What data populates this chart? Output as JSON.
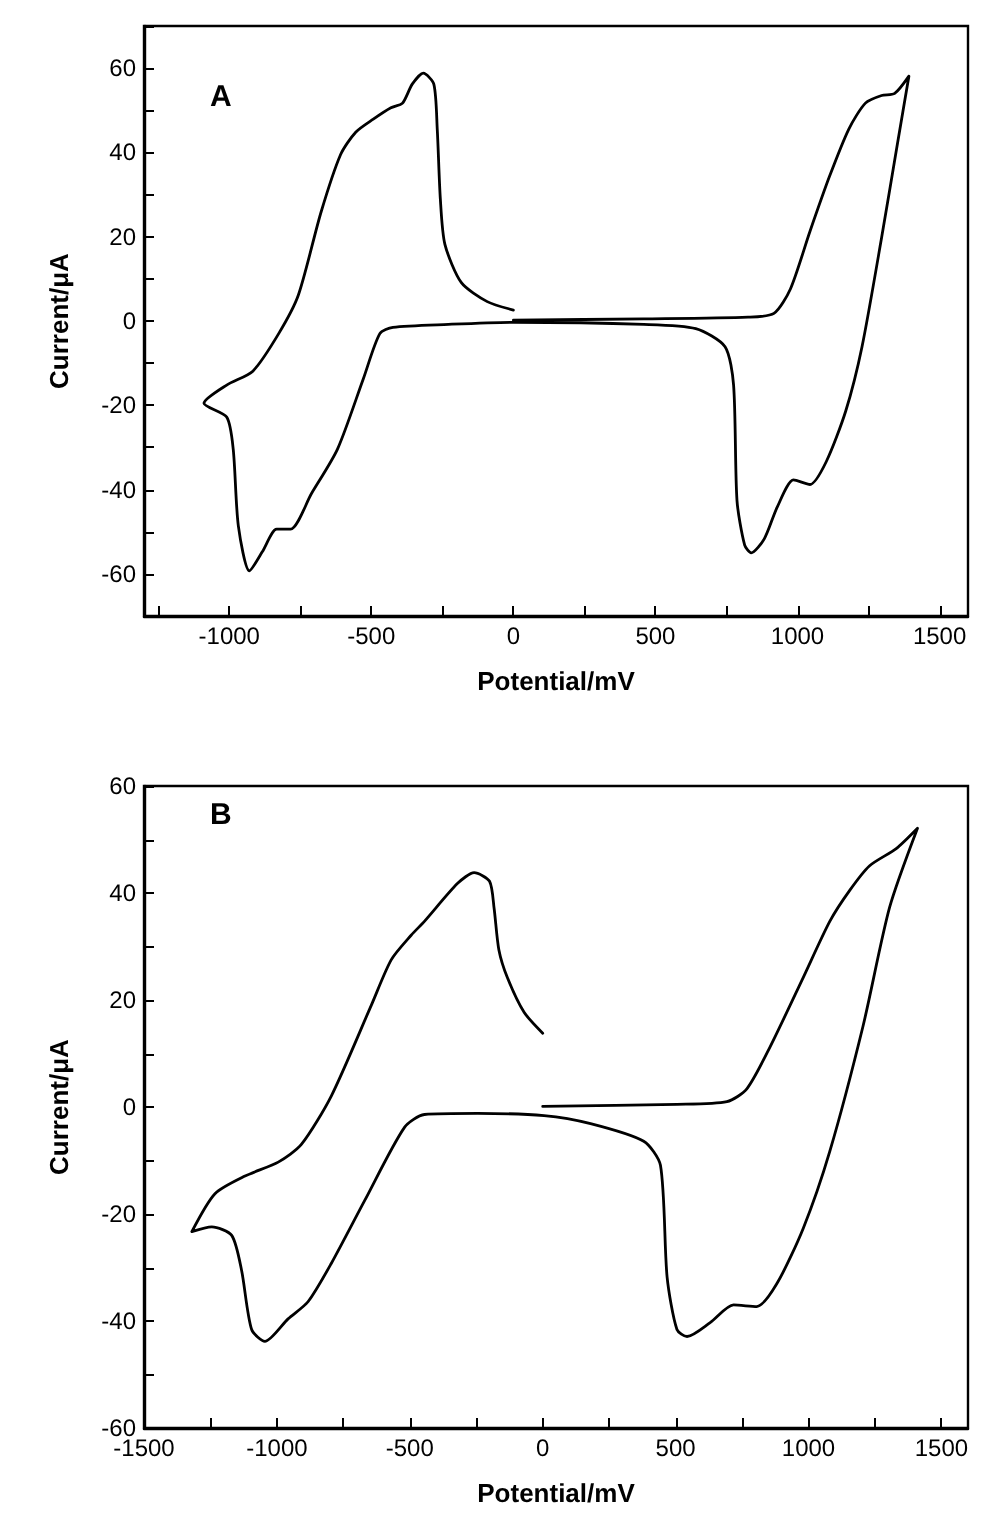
{
  "chart_data": [
    {
      "type": "line",
      "title": "A",
      "xlabel": "Potential/mV",
      "ylabel": "Current/μA",
      "grid": false,
      "marker": "none",
      "line_style": "solid",
      "xlim": [
        -1300,
        1600
      ],
      "ylim": [
        -70,
        70
      ],
      "xticks": [
        {
          "value": -1250,
          "label": null
        },
        -1000,
        {
          "value": -750,
          "label": null
        },
        -500,
        {
          "value": -250,
          "label": null
        },
        0,
        {
          "value": 250,
          "label": null
        },
        500,
        {
          "value": 750,
          "label": null
        },
        1000,
        {
          "value": 1250,
          "label": null
        },
        1500
      ],
      "yticks": [
        {
          "value": -70,
          "label": null
        },
        -60,
        {
          "value": -50,
          "label": null
        },
        -40,
        {
          "value": -30,
          "label": null
        },
        -20,
        {
          "value": -10,
          "label": null
        },
        0,
        {
          "value": 10,
          "label": null
        },
        20,
        {
          "value": 30,
          "label": null
        },
        40,
        {
          "value": 50,
          "label": null
        },
        60,
        {
          "value": 70,
          "label": null
        }
      ],
      "series": [
        {
          "color": "#000000",
          "x": [
            0,
            -92,
            -183,
            -241,
            -257,
            -268,
            -280,
            -317,
            -356,
            -390,
            -431,
            -493,
            -555,
            -608,
            -677,
            -757,
            -826,
            -917,
            -1009,
            -1089,
            -1009,
            -986,
            -968,
            -929,
            -883,
            -833,
            -784,
            -711,
            -619,
            -528,
            -470,
            -424,
            -229,
            0,
            459,
            642,
            745,
            775,
            787,
            814,
            837,
            883,
            929,
            986,
            1044,
            1101,
            1170,
            1227,
            1296,
            1353,
            1392,
            1342,
            1296,
            1239,
            1181,
            1112,
            1044,
            975,
            917,
            826,
            459,
            0
          ],
          "values": [
            2.6,
            4.6,
            9.1,
            18.2,
            28.9,
            45.6,
            56.2,
            58.8,
            56.2,
            51.7,
            50.6,
            47.9,
            44.8,
            39.5,
            25.8,
            6.1,
            -3.0,
            -11.9,
            -15.2,
            -19.5,
            -22.8,
            -30.4,
            -48.6,
            -59.3,
            -54.7,
            -49.4,
            -49.4,
            -41.0,
            -30.4,
            -13.7,
            -3.0,
            -1.5,
            -0.8,
            -0.3,
            -0.8,
            -1.8,
            -6.1,
            -15.2,
            -42.6,
            -53.2,
            -55.0,
            -51.7,
            -44.1,
            -37.7,
            -38.8,
            -33.4,
            -21.3,
            -6.1,
            19.8,
            42.6,
            58.1,
            54.0,
            53.5,
            51.7,
            45.6,
            34.2,
            21.3,
            7.6,
            1.8,
            0.9,
            0.5,
            0.2
          ]
        }
      ]
    },
    {
      "type": "line",
      "title": "B",
      "xlabel": "Potential/mV",
      "ylabel": "Current/μA",
      "grid": false,
      "marker": "none",
      "line_style": "solid",
      "xlim": [
        -1500,
        1600
      ],
      "ylim": [
        -60,
        60
      ],
      "xticks": [
        -1500,
        {
          "value": -1250,
          "label": null
        },
        -1000,
        {
          "value": -750,
          "label": null
        },
        -500,
        {
          "value": -250,
          "label": null
        },
        0,
        {
          "value": 250,
          "label": null
        },
        500,
        {
          "value": 750,
          "label": null
        },
        1000,
        {
          "value": 1250,
          "label": null
        },
        1500
      ],
      "yticks": [
        -60,
        {
          "value": -50,
          "label": null
        },
        -40,
        {
          "value": -30,
          "label": null
        },
        -20,
        {
          "value": -10,
          "label": null
        },
        0,
        {
          "value": 10,
          "label": null
        },
        20,
        {
          "value": 30,
          "label": null
        },
        40,
        {
          "value": 50,
          "label": null
        },
        60
      ],
      "series": [
        {
          "color": "#000000",
          "x": [
            0,
            -70,
            -133,
            -165,
            -183,
            -200,
            -258,
            -320,
            -445,
            -495,
            -570,
            -645,
            -795,
            -908,
            -995,
            -1120,
            -1233,
            -1320,
            -1245,
            -1170,
            -1133,
            -1095,
            -1045,
            -958,
            -883,
            -795,
            -670,
            -520,
            -445,
            -245,
            5,
            180,
            380,
            443,
            468,
            505,
            543,
            630,
            718,
            805,
            880,
            980,
            1080,
            1205,
            1305,
            1410,
            1330,
            1230,
            1155,
            1080,
            980,
            855,
            768,
            693,
            505,
            0
          ],
          "values": [
            13.8,
            17.7,
            24.2,
            29.4,
            37.2,
            42.2,
            43.8,
            41.8,
            34.7,
            32.1,
            27.5,
            19.0,
            2.1,
            -7.0,
            -10.3,
            -12.9,
            -16.2,
            -23.3,
            -22.4,
            -24.0,
            -30.5,
            -41.6,
            -43.8,
            -39.6,
            -36.4,
            -29.2,
            -17.5,
            -3.8,
            -1.4,
            -1.2,
            -1.6,
            -3.1,
            -6.4,
            -10.9,
            -31.8,
            -41.6,
            -42.9,
            -40.3,
            -37.0,
            -37.3,
            -33.1,
            -22.7,
            -8.3,
            15.1,
            37.3,
            52.1,
            48.3,
            45.1,
            40.5,
            34.7,
            24.2,
            11.2,
            3.4,
            1.0,
            0.5,
            0.1
          ]
        }
      ]
    }
  ]
}
